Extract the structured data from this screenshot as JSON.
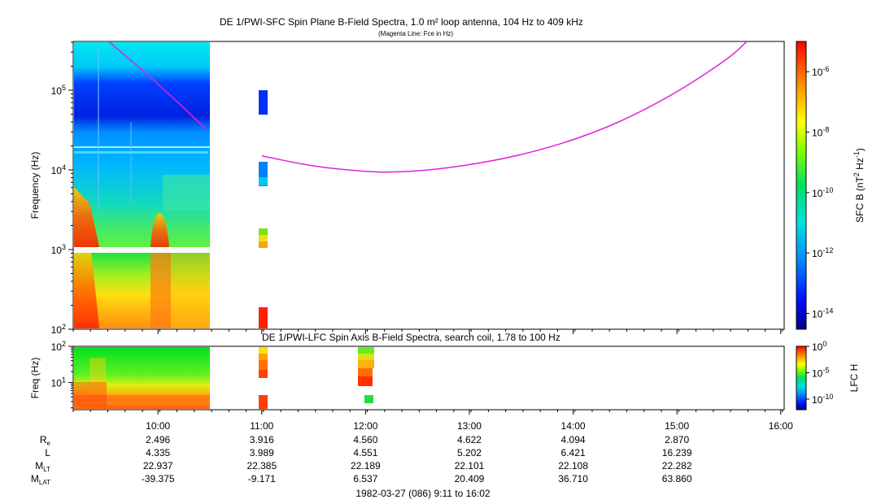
{
  "chart_data": [
    {
      "type": "heatmap",
      "title": "DE 1/PWI-SFC  Spin Plane B-Field Spectra, 1.0 m² loop antenna, 104 Hz to 409 kHz",
      "subtitle": "(Magenta Line: Fce in Hz)",
      "ylabel": "Frequency (Hz)",
      "yscale": "log",
      "ylim": [
        100,
        409000
      ],
      "y_ticks": [
        {
          "value": 100,
          "mant": "10",
          "exp": "2"
        },
        {
          "value": 1000,
          "mant": "10",
          "exp": "3"
        },
        {
          "value": 10000,
          "mant": "10",
          "exp": "4"
        },
        {
          "value": 100000,
          "mant": "10",
          "exp": "5"
        }
      ],
      "colorbar": {
        "label": "SFC B (nT",
        "label_sup1": "2",
        "label_mid": " Hz",
        "label_sup2": "-1",
        "label_end": ")",
        "scale": "log",
        "range": [
          3e-15,
          1e-05
        ],
        "ticks": [
          {
            "value": 1e-06,
            "mant": "10",
            "exp": "-6"
          },
          {
            "value": 1e-08,
            "mant": "10",
            "exp": "-8"
          },
          {
            "value": 1e-10,
            "mant": "10",
            "exp": "-10"
          },
          {
            "value": 1e-12,
            "mant": "10",
            "exp": "-12"
          },
          {
            "value": 1e-14,
            "mant": "10",
            "exp": "-14"
          }
        ]
      },
      "fce_line_color": "#e020e0",
      "fce_segment1": {
        "x": [
          "09:32",
          "09:55",
          "10:15",
          "10:28"
        ],
        "y": [
          400000,
          150000,
          60000,
          32000
        ]
      },
      "fce_segment2": {
        "x": [
          "11:00",
          "11:30",
          "12:00",
          "12:15",
          "12:45",
          "13:30",
          "14:15",
          "14:55",
          "15:30",
          "15:40"
        ],
        "y": [
          15000,
          11000,
          9500,
          9300,
          10200,
          15000,
          30000,
          80000,
          250000,
          400000
        ]
      }
    },
    {
      "type": "heatmap",
      "title": "DE 1/PWI-LFC  Spin Axis B-Field Spectra, search coil, 1.78 to 100 Hz",
      "ylabel": "Freq (Hz)",
      "yscale": "log",
      "ylim": [
        1.78,
        100
      ],
      "y_ticks": [
        {
          "value": 10,
          "mant": "10",
          "exp": "1"
        },
        {
          "value": 100,
          "mant": "10",
          "exp": "2"
        }
      ],
      "colorbar": {
        "label": "LFC H",
        "scale": "log",
        "range": [
          1e-12,
          1
        ],
        "ticks": [
          {
            "value": 1,
            "mant": "10",
            "exp": "0"
          },
          {
            "value": 1e-05,
            "mant": "10",
            "exp": "-5"
          },
          {
            "value": 1e-10,
            "mant": "10",
            "exp": "-10"
          }
        ]
      }
    }
  ],
  "x_axis": {
    "range": [
      "09:11",
      "16:02"
    ],
    "ticks": [
      "10:00",
      "11:00",
      "12:00",
      "13:00",
      "14:00",
      "15:00",
      "16:00"
    ]
  },
  "ephemeris": {
    "rows": [
      {
        "label": "R",
        "sub": "e",
        "values": [
          "2.496",
          "3.916",
          "4.560",
          "4.622",
          "4.094",
          "2.870"
        ]
      },
      {
        "label": "L",
        "sub": "",
        "values": [
          "4.335",
          "3.989",
          "4.551",
          "5.202",
          "6.421",
          "16.239"
        ]
      },
      {
        "label": "M",
        "sub": "LT",
        "values": [
          "22.937",
          "22.385",
          "22.189",
          "22.101",
          "22.108",
          "22.282"
        ]
      },
      {
        "label": "M",
        "sub": "LAT",
        "values": [
          "-39.375",
          "-9.171",
          "6.537",
          "20.409",
          "36.710",
          "63.860"
        ]
      }
    ]
  },
  "footer": "1982-03-27 (086) 9:11 to 16:02"
}
